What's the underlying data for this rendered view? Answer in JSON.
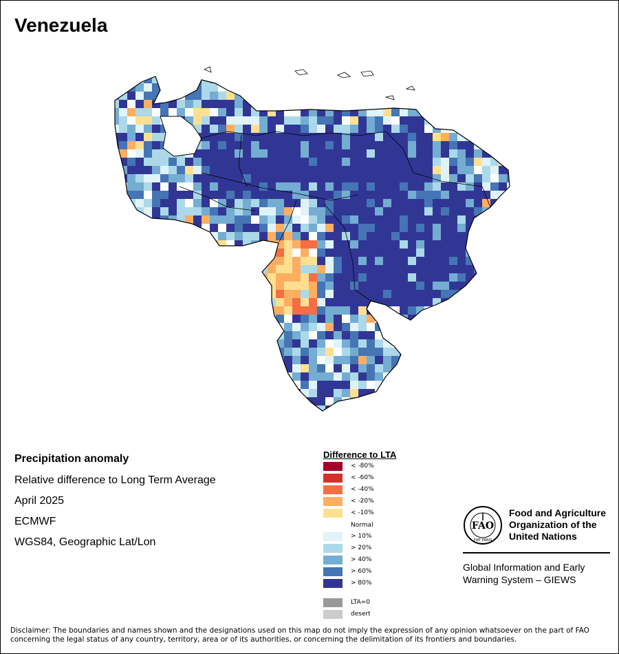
{
  "title": "Venezuela",
  "info": {
    "title": "Precipitation anomaly",
    "line1": "Relative difference to Long Term Average",
    "line2": "April 2025",
    "line3": "ECMWF",
    "line4": "WGS84, Geographic Lat/Lon"
  },
  "legend": {
    "title": "Difference to LTA",
    "items": [
      {
        "label": "< -80%",
        "color": "#a50026"
      },
      {
        "label": "< -60%",
        "color": "#d73027"
      },
      {
        "label": "< -40%",
        "color": "#f46d43"
      },
      {
        "label": "< -20%",
        "color": "#fdae61"
      },
      {
        "label": "< -10%",
        "color": "#fee090"
      },
      {
        "label": "Normal",
        "color": "#ffffff"
      },
      {
        "label": "> 10%",
        "color": "#e0f3f8"
      },
      {
        "label": "> 20%",
        "color": "#abd9e9"
      },
      {
        "label": "> 40%",
        "color": "#74add1"
      },
      {
        "label": "> 60%",
        "color": "#4575b4"
      },
      {
        "label": "> 80%",
        "color": "#313695"
      },
      {
        "label": "LTA=0",
        "color": "#999999"
      },
      {
        "label": "desert",
        "color": "#cccccc"
      }
    ]
  },
  "organization": {
    "line1": "Food and Agriculture",
    "line2": "Organization of the",
    "line3": "United Nations",
    "giews1": "Global Information and Early",
    "giews2": "Warning System – GIEWS",
    "logo_text": "FIAT PANIS"
  },
  "disclaimer": "Disclaimer: The boundaries and names shown and the designations used on this map do not imply the expression of any opinion whatsoever on the part of FAO concerning the legal status of any country, territory, area or of its authorities, or concerning the delimitation of its frontiers and boundaries."
}
